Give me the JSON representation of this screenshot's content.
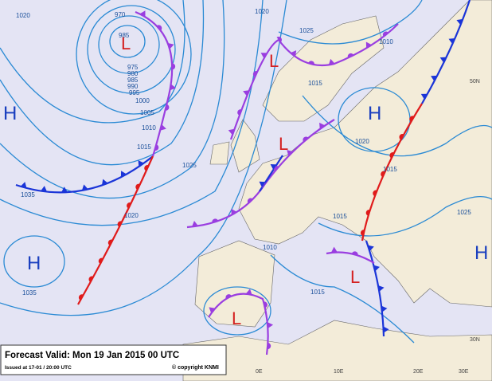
{
  "map": {
    "pressure_centers": [
      "H",
      "L",
      "L",
      "H",
      "L",
      "H",
      "L",
      "L",
      "H"
    ],
    "isobar_labels": [
      "1020",
      "970",
      "985",
      "975",
      "980",
      "985",
      "990",
      "995",
      "1000",
      "1005",
      "1010",
      "1015",
      "1025",
      "1035",
      "1020",
      "1035",
      "1020",
      "1025",
      "1010",
      "1015",
      "1020",
      "1015",
      "1015",
      "1025",
      "1010",
      "1015"
    ],
    "grid_labels": [
      "0E",
      "10E",
      "20E",
      "30E",
      "30N",
      "50N"
    ]
  },
  "footer": {
    "title": "Forecast Valid:  Mon 19 Jan 2015 00 UTC",
    "issued": "Issued at 17-01 / 20:00 UTC",
    "copyright": "© copyright KNMI"
  }
}
